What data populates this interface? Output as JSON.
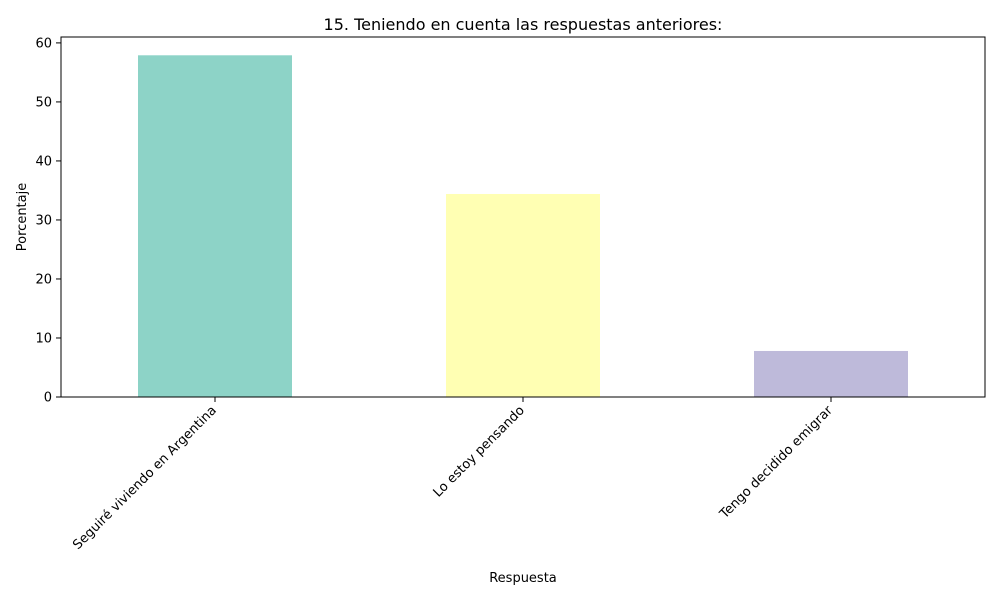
{
  "chart_data": {
    "type": "bar",
    "title": "15. Teniendo en cuenta las respuestas anteriores:",
    "xlabel": "Respuesta",
    "ylabel": "Porcentaje",
    "categories": [
      "Seguiré viviendo en Argentina",
      "Lo estoy pensando",
      "Tengo decidido emigrar"
    ],
    "values": [
      57.9,
      34.4,
      7.8
    ],
    "colors": [
      "#8dd3c7",
      "#ffffb3",
      "#bebada"
    ],
    "ylim": [
      0,
      61
    ],
    "yticks": [
      0,
      10,
      20,
      30,
      40,
      50,
      60
    ],
    "grid": false,
    "legend": "none"
  }
}
